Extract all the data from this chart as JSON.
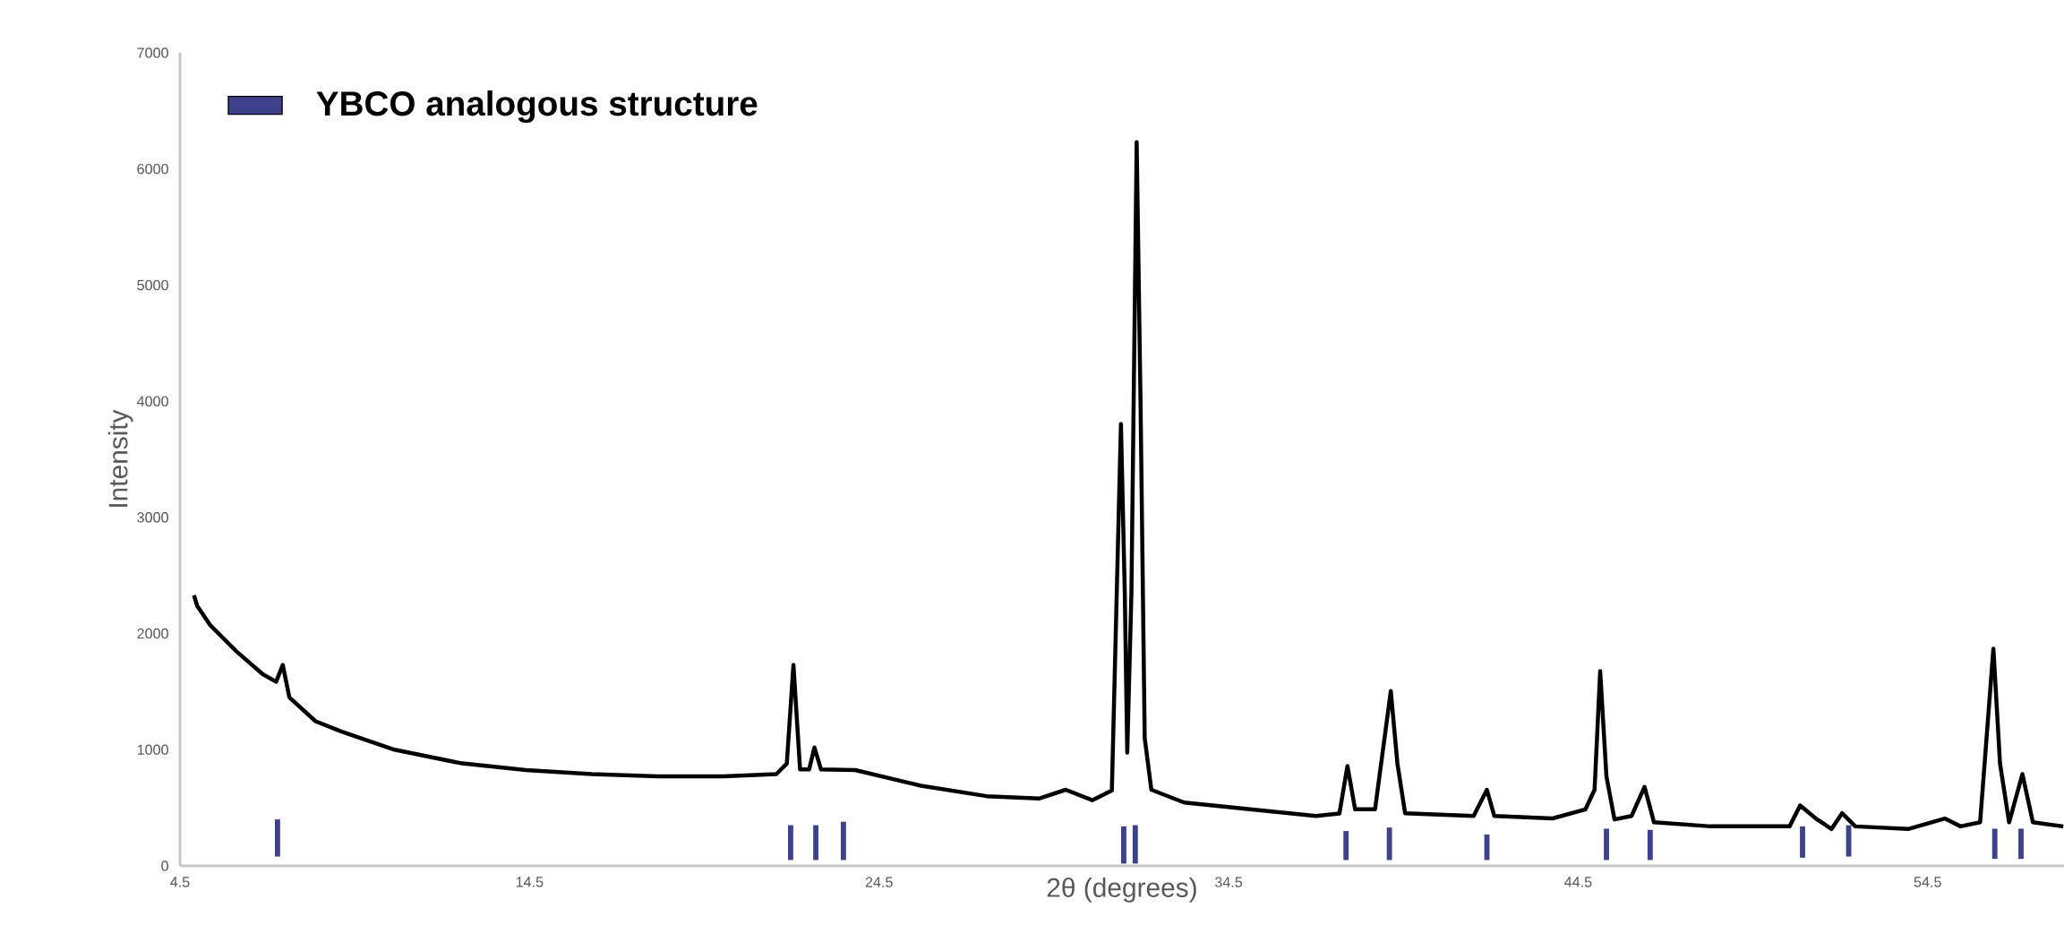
{
  "chart_data": {
    "type": "line",
    "xlabel": "2θ (degrees)",
    "ylabel": "Intensity",
    "xlim": [
      4.5,
      58.4
    ],
    "ylim": [
      0,
      7000
    ],
    "xticks": [
      4.5,
      14.5,
      24.5,
      34.5,
      44.5,
      54.5
    ],
    "yticks": [
      0,
      1000,
      2000,
      3000,
      4000,
      5000,
      6000,
      7000
    ],
    "legend": "top left",
    "series": [
      {
        "color": "#000000",
        "x": [
          4.9,
          4.99,
          5.37,
          6.12,
          6.87,
          7.25,
          7.44,
          7.63,
          8.38,
          9.13,
          10.64,
          12.52,
          14.4,
          16.28,
          18.17,
          20.05,
          21.56,
          21.86,
          22.05,
          22.24,
          22.5,
          22.65,
          22.84,
          23.82,
          25.7,
          27.58,
          29.09,
          29.84,
          30.6,
          31.16,
          31.42,
          31.53,
          31.6,
          31.72,
          31.87,
          31.98,
          32.1,
          32.29,
          33.23,
          35.11,
          37.0,
          37.67,
          37.9,
          38.12,
          38.69,
          39.14,
          39.33,
          39.55,
          41.51,
          41.89,
          42.1,
          43.77,
          44.71,
          44.97,
          45.13,
          45.31,
          45.54,
          46.03,
          46.4,
          46.67,
          48.29,
          50.55,
          50.85,
          51.3,
          51.75,
          52.05,
          52.43,
          53.94,
          54.99,
          55.44,
          56.0,
          56.38,
          56.57,
          56.83,
          57.21,
          57.51,
          58.38
        ],
        "values": [
          2330,
          2240,
          2070,
          1845,
          1650,
          1585,
          1730,
          1450,
          1245,
          1155,
          1000,
          885,
          825,
          790,
          770,
          770,
          790,
          880,
          1730,
          830,
          830,
          1020,
          830,
          825,
          690,
          600,
          580,
          655,
          565,
          650,
          3805,
          2350,
          975,
          2350,
          6230,
          4000,
          1100,
          655,
          545,
          487,
          430,
          450,
          860,
          487,
          487,
          1505,
          880,
          453,
          430,
          655,
          430,
          408,
          487,
          655,
          1676,
          770,
          400,
          430,
          680,
          375,
          340,
          340,
          520,
          408,
          317,
          453,
          340,
          317,
          408,
          340,
          375,
          1870,
          880,
          375,
          790,
          375,
          340
        ]
      },
      {
        "type": "bar",
        "name": "YBCO analogous structure",
        "color": "#3d428a",
        "x": [
          7.29,
          21.97,
          22.69,
          23.48,
          31.5,
          31.83,
          37.86,
          39.1,
          41.89,
          45.31,
          46.56,
          50.92,
          52.24,
          56.42,
          57.17
        ],
        "base": [
          80,
          50,
          50,
          50,
          20,
          20,
          50,
          50,
          50,
          50,
          50,
          70,
          80,
          60,
          60
        ],
        "values": [
          320,
          300,
          300,
          330,
          320,
          330,
          250,
          280,
          220,
          270,
          260,
          270,
          270,
          260,
          260
        ]
      }
    ]
  }
}
